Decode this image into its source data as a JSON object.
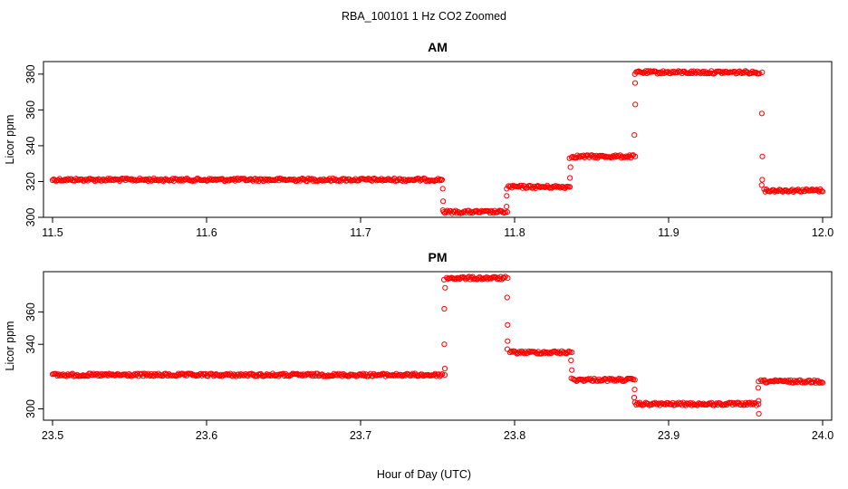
{
  "figure": {
    "title": "RBA_100101  1 Hz CO2 Zoomed",
    "xlabel": "Hour of Day (UTC)"
  },
  "colors": {
    "points": "#ff0000",
    "axis": "#000000"
  },
  "chart_data": [
    {
      "type": "scatter",
      "title": "AM",
      "ylabel": "Licor ppm",
      "xlim": [
        11.5,
        12.0
      ],
      "ylim": [
        300,
        387
      ],
      "x_ticks": [
        "11.5",
        "11.6",
        "11.7",
        "11.8",
        "11.9",
        "12.0"
      ],
      "x_tick_values": [
        11.5,
        11.6,
        11.7,
        11.8,
        11.9,
        12.0
      ],
      "y_ticks": [
        "300",
        "320",
        "340",
        "360",
        "380"
      ],
      "y_tick_values": [
        300,
        320,
        340,
        360,
        380
      ],
      "segments": [
        {
          "x": [
            11.5,
            11.7525
          ],
          "y": 321
        },
        {
          "x": [
            11.754,
            11.794
          ],
          "y": 303
        },
        {
          "x": [
            11.796,
            11.835
          ],
          "y": 317
        },
        {
          "x": [
            11.837,
            11.877
          ],
          "y": 334
        },
        {
          "x": [
            11.879,
            11.959
          ],
          "y": 381
        },
        {
          "x": [
            11.962,
            12.0
          ],
          "y": 315
        }
      ],
      "transitions": [
        {
          "x": 11.7532,
          "y": [
            321,
            316,
            309,
            304
          ]
        },
        {
          "x": 11.795,
          "y": [
            303,
            306,
            312,
            316
          ]
        },
        {
          "x": 11.836,
          "y": [
            317,
            322,
            328,
            333
          ]
        },
        {
          "x": 11.878,
          "y": [
            334,
            346,
            363,
            375,
            380
          ]
        },
        {
          "x": 11.9605,
          "y": [
            381,
            358,
            334,
            321,
            318
          ]
        }
      ]
    },
    {
      "type": "scatter",
      "title": "PM",
      "ylabel": "Licor ppm",
      "xlim": [
        23.5,
        24.0
      ],
      "ylim": [
        293,
        385
      ],
      "x_ticks": [
        "23.5",
        "23.6",
        "23.7",
        "23.8",
        "23.9",
        "24.0"
      ],
      "x_tick_values": [
        23.5,
        23.6,
        23.7,
        23.8,
        23.9,
        24.0
      ],
      "y_ticks": [
        "300",
        "340",
        "360"
      ],
      "y_tick_values": [
        300,
        340,
        360
      ],
      "segments": [
        {
          "x": [
            23.5,
            23.753
          ],
          "y": 321
        },
        {
          "x": [
            23.756,
            23.794
          ],
          "y": 381
        },
        {
          "x": [
            23.797,
            23.836
          ],
          "y": 335
        },
        {
          "x": [
            23.838,
            23.877
          ],
          "y": 318
        },
        {
          "x": [
            23.879,
            23.957
          ],
          "y": 303
        },
        {
          "x": [
            23.96,
            24.0
          ],
          "y": 317
        }
      ],
      "transitions": [
        {
          "x": 23.7545,
          "y": [
            321,
            325,
            340,
            362,
            375,
            380
          ]
        },
        {
          "x": 23.7955,
          "y": [
            381,
            369,
            352,
            342,
            337
          ]
        },
        {
          "x": 23.837,
          "y": [
            335,
            330,
            324,
            319
          ]
        },
        {
          "x": 23.878,
          "y": [
            318,
            312,
            307,
            304
          ]
        },
        {
          "x": 23.9585,
          "y": [
            303,
            297,
            305,
            313,
            317
          ]
        }
      ]
    }
  ]
}
